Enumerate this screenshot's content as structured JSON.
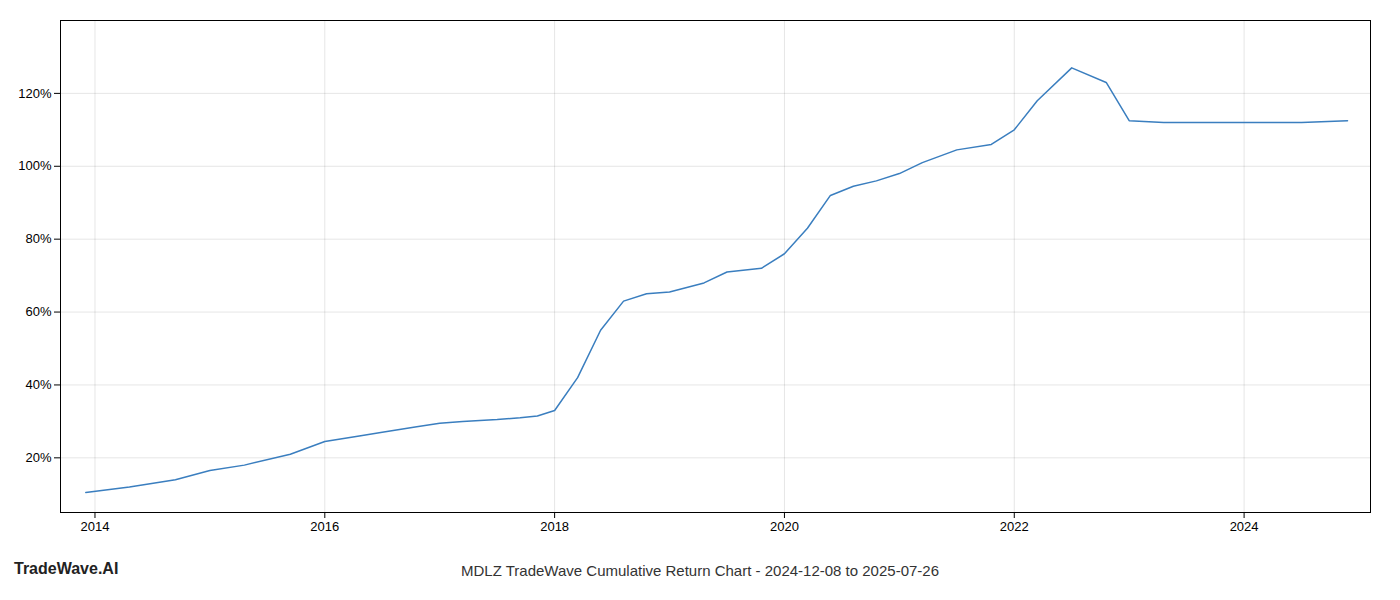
{
  "chart_data": {
    "type": "line",
    "title": "MDLZ TradeWave Cumulative Return Chart - 2024-12-08 to 2025-07-26",
    "annotations": [
      "TradeWave.AI"
    ],
    "x": [
      2013.92,
      2014.3,
      2014.7,
      2015.0,
      2015.3,
      2015.7,
      2016.0,
      2016.3,
      2016.5,
      2016.8,
      2017.0,
      2017.2,
      2017.5,
      2017.7,
      2017.85,
      2018.0,
      2018.2,
      2018.4,
      2018.6,
      2018.8,
      2019.0,
      2019.3,
      2019.5,
      2019.8,
      2020.0,
      2020.2,
      2020.4,
      2020.6,
      2020.8,
      2021.0,
      2021.2,
      2021.5,
      2021.8,
      2022.0,
      2022.2,
      2022.5,
      2022.8,
      2023.0,
      2023.3,
      2023.6,
      2024.0,
      2024.5,
      2024.9
    ],
    "values": [
      10.5,
      12.0,
      14.0,
      16.5,
      18.0,
      21.0,
      24.5,
      26.0,
      27.0,
      28.5,
      29.5,
      30.0,
      30.5,
      31.0,
      31.5,
      33.0,
      42.0,
      55.0,
      63.0,
      65.0,
      65.5,
      68.0,
      71.0,
      72.0,
      76.0,
      83.0,
      92.0,
      94.5,
      96.0,
      98.0,
      101.0,
      104.5,
      106.0,
      110.0,
      118.0,
      127.0,
      123.0,
      112.5,
      112.0,
      112.0,
      112.0,
      112.0,
      112.5
    ],
    "color": "#3a7ebf",
    "xlim": [
      2013.7,
      2025.1
    ],
    "ylim": [
      5,
      140
    ],
    "xticks": [
      2014,
      2016,
      2018,
      2020,
      2022,
      2024
    ],
    "yticks": [
      {
        "value": 20,
        "label": "20%"
      },
      {
        "value": 40,
        "label": "40%"
      },
      {
        "value": 60,
        "label": "60%"
      },
      {
        "value": 80,
        "label": "80%"
      },
      {
        "value": 100,
        "label": "100%"
      },
      {
        "value": 120,
        "label": "120%"
      }
    ],
    "grid": true
  }
}
